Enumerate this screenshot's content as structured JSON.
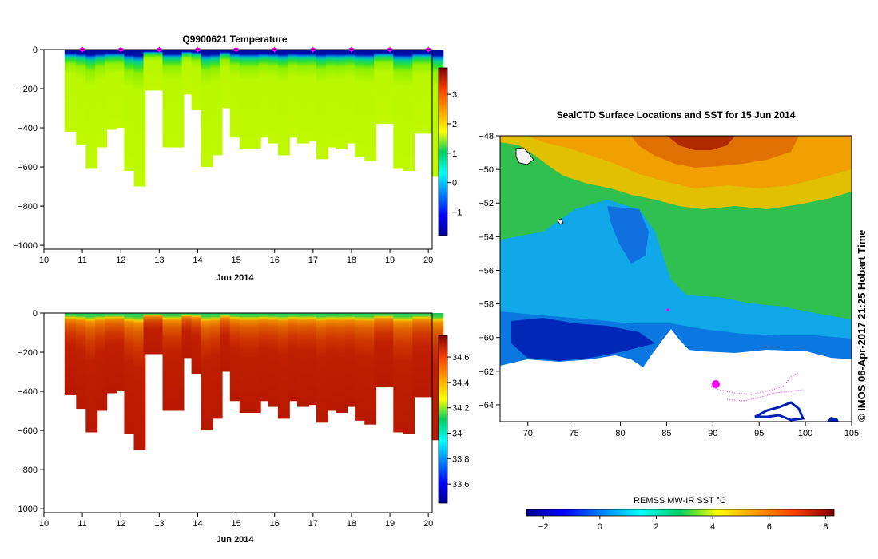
{
  "chart_data": [
    {
      "type": "heatmap",
      "title": "Q9900621  Temperature",
      "xlabel": "Jun 2014",
      "x_range": [
        10,
        20.1
      ],
      "y_range": [
        -1020,
        0
      ],
      "x_ticks": [
        10,
        11,
        12,
        13,
        14,
        15,
        16,
        17,
        18,
        19,
        20
      ],
      "y_ticks": [
        0,
        -200,
        -400,
        -600,
        -800,
        -1000
      ],
      "colorbar_ticks": [
        -1,
        0,
        1,
        2,
        3
      ],
      "colorbar_range": [
        -1.8,
        3.9
      ],
      "profiles": [
        {
          "x": 10.5,
          "depth": 420
        },
        {
          "x": 10.8,
          "depth": 490
        },
        {
          "x": 11.05,
          "depth": 610
        },
        {
          "x": 11.3,
          "depth": 500
        },
        {
          "x": 11.55,
          "depth": 410
        },
        {
          "x": 11.8,
          "depth": 400
        },
        {
          "x": 12.05,
          "depth": 620
        },
        {
          "x": 12.3,
          "depth": 700
        },
        {
          "x": 12.55,
          "depth": 210
        },
        {
          "x": 12.8,
          "depth": 210
        },
        {
          "x": 13.05,
          "depth": 500
        },
        {
          "x": 13.3,
          "depth": 500
        },
        {
          "x": 13.55,
          "depth": 230
        },
        {
          "x": 13.8,
          "depth": 310
        },
        {
          "x": 14.05,
          "depth": 600
        },
        {
          "x": 14.3,
          "depth": 540
        },
        {
          "x": 14.55,
          "depth": 300
        },
        {
          "x": 14.8,
          "depth": 450
        },
        {
          "x": 15.05,
          "depth": 510
        },
        {
          "x": 15.3,
          "depth": 510
        },
        {
          "x": 15.55,
          "depth": 450
        },
        {
          "x": 15.8,
          "depth": 480
        },
        {
          "x": 16.05,
          "depth": 540
        },
        {
          "x": 16.3,
          "depth": 450
        },
        {
          "x": 16.55,
          "depth": 480
        },
        {
          "x": 16.8,
          "depth": 470
        },
        {
          "x": 17.05,
          "depth": 560
        },
        {
          "x": 17.3,
          "depth": 500
        },
        {
          "x": 17.55,
          "depth": 510
        },
        {
          "x": 17.8,
          "depth": 480
        },
        {
          "x": 18.05,
          "depth": 550
        },
        {
          "x": 18.3,
          "depth": 570
        },
        {
          "x": 18.55,
          "depth": 380
        },
        {
          "x": 18.8,
          "depth": 380
        },
        {
          "x": 19.05,
          "depth": 610
        },
        {
          "x": 19.3,
          "depth": 620
        },
        {
          "x": 19.55,
          "depth": 430
        },
        {
          "x": 19.8,
          "depth": 430
        },
        {
          "x": 20.05,
          "depth": 650
        }
      ],
      "surface_markers_x": [
        11,
        12,
        13,
        14,
        15,
        16,
        17,
        18,
        19,
        20
      ]
    },
    {
      "type": "heatmap",
      "title": "",
      "xlabel": "Jun 2014",
      "x_range": [
        10,
        20.1
      ],
      "y_range": [
        -1020,
        0
      ],
      "x_ticks": [
        10,
        11,
        12,
        13,
        14,
        15,
        16,
        17,
        18,
        19,
        20
      ],
      "y_ticks": [
        0,
        -200,
        -400,
        -600,
        -800,
        -1000
      ],
      "colorbar_ticks": [
        "33.6",
        "33.8",
        "34",
        "34.2",
        "34.4",
        "34.6"
      ],
      "colorbar_range": [
        33.45,
        34.77
      ]
    },
    {
      "type": "heatmap",
      "title": "SealCTD Surface Locations and SST for 15 Jun 2014",
      "x_range": [
        67,
        105
      ],
      "y_range": [
        -65,
        -48
      ],
      "x_ticks": [
        70,
        75,
        80,
        85,
        90,
        95,
        100,
        105
      ],
      "y_ticks": [
        -48,
        -50,
        -52,
        -54,
        -56,
        -58,
        -60,
        -62,
        -64
      ],
      "colorbar_label": "REMSS MW-IR SST °C",
      "colorbar_ticks": [
        -2,
        0,
        2,
        4,
        6,
        8
      ],
      "colorbar_range": [
        -2.6,
        8.3
      ],
      "stamp": "© IMOS 06-Apr-2017 21:25 Hobart Time"
    }
  ]
}
